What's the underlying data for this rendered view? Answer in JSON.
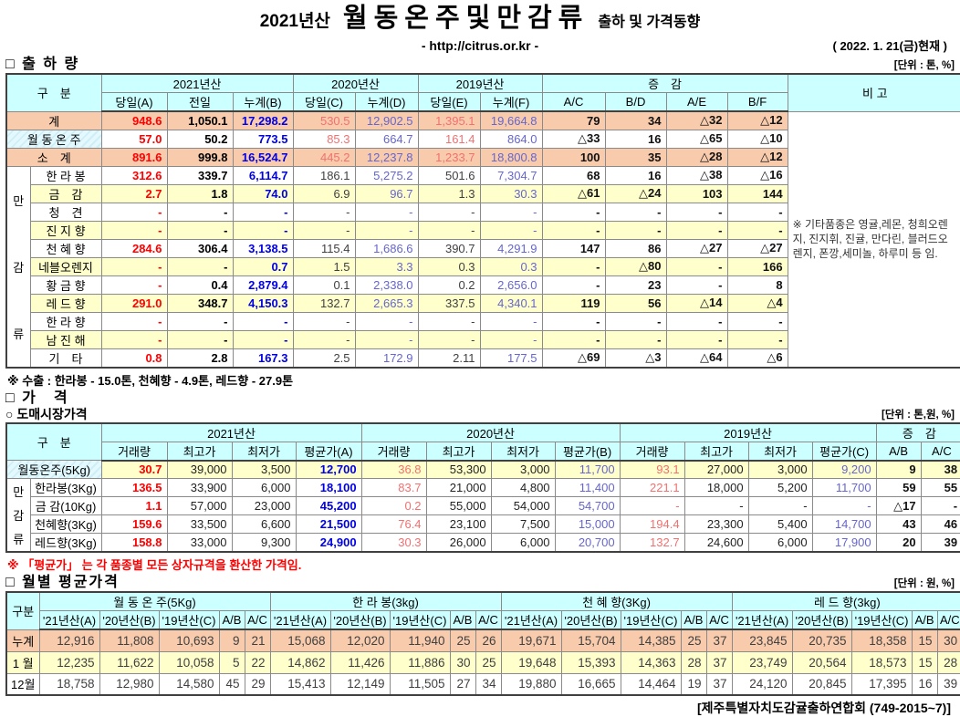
{
  "meta": {
    "title_year": "2021년산",
    "title_main": "월동온주및만감류",
    "title_tail": "출하 및 가격동향",
    "url": "- http://citrus.or.kr -",
    "date": "( 2022. 1. 21(금)현재 )"
  },
  "shipment": {
    "heading": "□ 출 하 량",
    "unit": "[단위 : 톤, %]",
    "header": {
      "gubun": "구　분",
      "groups": [
        "2021년산",
        "2020년산",
        "2019년산",
        "증　감"
      ],
      "cols": [
        "당일(A)",
        "전일",
        "누계(B)",
        "당일(C)",
        "누계(D)",
        "당일(E)",
        "누계(F)",
        "A/C",
        "B/D",
        "A/E",
        "B/F"
      ],
      "bigo": "비 고"
    },
    "group_label": "만감류",
    "rows": [
      {
        "label": "계",
        "bg": "peach",
        "summary": true,
        "values": [
          "948.6",
          "1,050.1",
          "17,298.2",
          "530.5",
          "12,902.5",
          "1,395.1",
          "19,664.8",
          "79",
          "34",
          "△32",
          "△12"
        ]
      },
      {
        "label": "월 동 온 주",
        "bg": "white",
        "labelBg": "cyan",
        "summary": true,
        "values": [
          "57.0",
          "50.2",
          "773.5",
          "85.3",
          "664.7",
          "161.4",
          "864.0",
          "△33",
          "16",
          "△65",
          "△10"
        ]
      },
      {
        "label": "소　계",
        "bg": "peach",
        "summary": true,
        "values": [
          "891.6",
          "999.8",
          "16,524.7",
          "445.2",
          "12,237.8",
          "1,233.7",
          "18,800.8",
          "100",
          "35",
          "△28",
          "△12"
        ]
      },
      {
        "label": "한 라 봉",
        "bg": "white",
        "values": [
          "312.6",
          "339.7",
          "6,114.7",
          "186.1",
          "5,275.2",
          "501.6",
          "7,304.7",
          "68",
          "16",
          "△38",
          "△16"
        ]
      },
      {
        "label": "금　감",
        "bg": "yellow",
        "values": [
          "2.7",
          "1.8",
          "74.0",
          "6.9",
          "96.7",
          "1.3",
          "30.3",
          "△61",
          "△24",
          "103",
          "144"
        ]
      },
      {
        "label": "청　견",
        "bg": "white",
        "values": [
          "-",
          "-",
          "-",
          "-",
          "-",
          "-",
          "-",
          "-",
          "-",
          "-",
          "-"
        ]
      },
      {
        "label": "진 지 향",
        "bg": "yellow",
        "values": [
          "-",
          "-",
          "-",
          "-",
          "-",
          "-",
          "-",
          "-",
          "-",
          "-",
          "-"
        ]
      },
      {
        "label": "천 혜 향",
        "bg": "white",
        "values": [
          "284.6",
          "306.4",
          "3,138.5",
          "115.4",
          "1,686.6",
          "390.7",
          "4,291.9",
          "147",
          "86",
          "△27",
          "△27"
        ]
      },
      {
        "label": "네블오렌지",
        "bg": "yellow",
        "values": [
          "-",
          "-",
          "0.7",
          "1.5",
          "3.3",
          "0.3",
          "0.3",
          "-",
          "△80",
          "-",
          "166"
        ]
      },
      {
        "label": "황 금 향",
        "bg": "white",
        "values": [
          "-",
          "0.4",
          "2,879.4",
          "0.1",
          "2,338.0",
          "0.2",
          "2,656.0",
          "-",
          "23",
          "-",
          "8"
        ]
      },
      {
        "label": "레 드 향",
        "bg": "yellow",
        "values": [
          "291.0",
          "348.7",
          "4,150.3",
          "132.7",
          "2,665.3",
          "337.5",
          "4,340.1",
          "119",
          "56",
          "△14",
          "△4"
        ]
      },
      {
        "label": "한 라 향",
        "bg": "white",
        "values": [
          "-",
          "-",
          "-",
          "-",
          "-",
          "-",
          "-",
          "-",
          "-",
          "-",
          "-"
        ]
      },
      {
        "label": "남 진 해",
        "bg": "yellow",
        "values": [
          "-",
          "-",
          "-",
          "-",
          "-",
          "-",
          "-",
          "-",
          "-",
          "-",
          "-"
        ]
      },
      {
        "label": "기　타",
        "bg": "white",
        "values": [
          "0.8",
          "2.8",
          "167.3",
          "2.5",
          "172.9",
          "2.11",
          "177.5",
          "△69",
          "△3",
          "△64",
          "△6"
        ]
      }
    ],
    "remark": "※ 기타품종은 영귤,레몬, 청희오렌지, 진지휘, 진귤, 만다린, 블러드오렌지, 폰깡,세미놀, 하루미 등 임.",
    "footnote": "※ 수출 :  한라봉 - 15.0톤,  천혜향 - 4.9톤,  레드향 - 27.9톤"
  },
  "price": {
    "heading": "□ 가　격",
    "subheading": "○ 도매시장가격",
    "unit": "[단위 : 톤,원, %]",
    "header": {
      "gubun": "구　분",
      "groups": [
        "2021년산",
        "2020년산",
        "2019년산",
        "증　감"
      ],
      "cols": [
        "거래량",
        "최고가",
        "최저가",
        "평균가(A)",
        "거래량",
        "최고가",
        "최저가",
        "평균가(B)",
        "거래량",
        "최고가",
        "최저가",
        "평균가(C)",
        "A/B",
        "A/C"
      ]
    },
    "group_label": "만감류",
    "rows": [
      {
        "label": "월동온주(5Kg)",
        "bg": "yellow",
        "labelBg": "cyan",
        "values": [
          "30.7",
          "39,000",
          "3,500",
          "12,700",
          "36.8",
          "53,300",
          "3,000",
          "11,700",
          "93.1",
          "27,000",
          "3,000",
          "9,200",
          "9",
          "38"
        ]
      },
      {
        "label": "한라봉(3Kg)",
        "bg": "white",
        "values": [
          "136.5",
          "33,900",
          "6,000",
          "18,100",
          "83.7",
          "21,000",
          "4,800",
          "11,400",
          "221.1",
          "18,000",
          "5,200",
          "11,700",
          "59",
          "55"
        ]
      },
      {
        "label": "금 감(10Kg)",
        "bg": "white",
        "values": [
          "1.1",
          "57,000",
          "23,000",
          "45,200",
          "0.2",
          "55,000",
          "54,000",
          "54,700",
          "-",
          "-",
          "-",
          "-",
          "△17",
          "-"
        ]
      },
      {
        "label": "천혜향(3Kg)",
        "bg": "white",
        "values": [
          "159.6",
          "33,500",
          "6,600",
          "21,500",
          "76.4",
          "23,100",
          "7,500",
          "15,000",
          "194.4",
          "23,300",
          "5,400",
          "14,700",
          "43",
          "46"
        ]
      },
      {
        "label": "레드향(3Kg)",
        "bg": "white",
        "values": [
          "158.8",
          "33,000",
          "9,300",
          "24,900",
          "30.3",
          "26,000",
          "6,000",
          "20,700",
          "132.7",
          "24,600",
          "6,000",
          "17,900",
          "20",
          "39"
        ]
      }
    ],
    "footnote": "※  「평균가」 는 각 품종별 모든 상자규격을 환산한 가격임."
  },
  "monthly": {
    "heading": "□ 월별 평균가격",
    "unit": "[단위 : 원, %]",
    "gubun": "구분",
    "groups": [
      "월 동 온 주(5Kg)",
      "한 라 봉(3kg)",
      "천 혜 향(3Kg)",
      "레 드 향(3kg)"
    ],
    "cols": [
      "'21년산(A)",
      "'20년산(B)",
      "'19년산(C)",
      "A/B",
      "A/C"
    ],
    "rows": [
      {
        "label": "누계",
        "bg": "peach",
        "values": [
          "12,916",
          "11,808",
          "10,693",
          "9",
          "21",
          "15,068",
          "12,020",
          "11,940",
          "25",
          "26",
          "19,671",
          "15,704",
          "14,385",
          "25",
          "37",
          "23,845",
          "20,735",
          "18,358",
          "15",
          "30"
        ]
      },
      {
        "label": "1 월",
        "bg": "yellow",
        "values": [
          "12,235",
          "11,622",
          "10,058",
          "5",
          "22",
          "14,862",
          "11,426",
          "11,886",
          "30",
          "25",
          "19,648",
          "15,393",
          "14,363",
          "28",
          "37",
          "23,749",
          "20,564",
          "18,573",
          "15",
          "28"
        ]
      },
      {
        "label": "12월",
        "bg": "white",
        "values": [
          "18,758",
          "12,980",
          "14,580",
          "45",
          "29",
          "15,413",
          "12,149",
          "11,505",
          "27",
          "34",
          "19,880",
          "16,665",
          "14,464",
          "19",
          "37",
          "24,120",
          "20,845",
          "17,395",
          "16",
          "39"
        ]
      }
    ]
  },
  "footer": "[제주특별자치도감귤출하연합회 (749-2015~7)]"
}
